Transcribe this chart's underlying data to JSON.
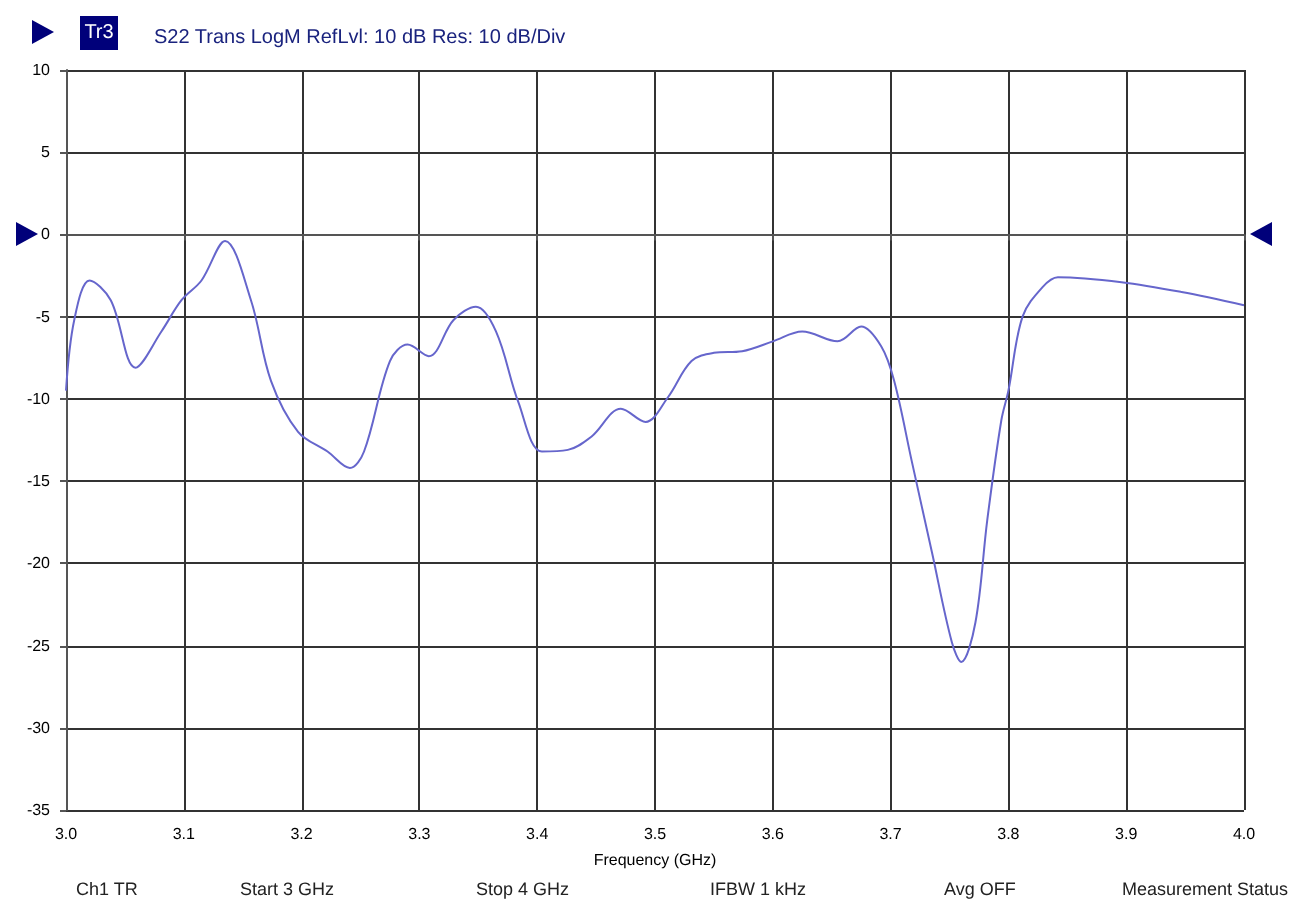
{
  "chart_data": {
    "type": "line",
    "title": "S22 Trans LogM RefLvl: 10 dB Res: 10 dB/Div",
    "xlabel": "Frequency (GHz)",
    "annotations": [
      "Tr3",
      "Ch1 TR",
      "Start 3 GHz",
      "Stop 4 GHz",
      "IFBW 1 kHz",
      "Avg OFF",
      "Measurement Status"
    ],
    "xlim": [
      3.0,
      4.0
    ],
    "ylim": [
      -35,
      10
    ],
    "xticks": [
      {
        "value": 3.0,
        "label": "3.0"
      },
      3.1,
      3.2,
      3.3,
      3.4,
      3.5,
      3.6,
      3.7,
      3.8,
      3.9,
      {
        "value": 4.0,
        "label": "4.0"
      }
    ],
    "yticks": [
      -35,
      -30,
      -25,
      -20,
      -15,
      -10,
      -5,
      0,
      5,
      10
    ],
    "grid": true,
    "marker": "none",
    "line_style": "solid",
    "series": [
      {
        "color": "#6666cc",
        "x": [
          3.0,
          3.007,
          3.02,
          3.038,
          3.059,
          3.081,
          3.098,
          3.115,
          3.135,
          3.157,
          3.174,
          3.197,
          3.222,
          3.241,
          3.253,
          3.275,
          3.29,
          3.308,
          3.329,
          3.348,
          3.365,
          3.384,
          3.404,
          3.426,
          3.446,
          3.471,
          3.492,
          3.511,
          3.531,
          3.55,
          3.574,
          3.6,
          3.625,
          3.655,
          3.675,
          3.692,
          3.703,
          3.718,
          3.735,
          3.752,
          3.76,
          3.772,
          3.782,
          3.794,
          3.8,
          3.812,
          3.829,
          3.842,
          3.896,
          3.947,
          4.0
        ],
        "values": [
          -9.5,
          -5.2,
          -2.8,
          -4,
          -8.1,
          -5.9,
          -4,
          -2.8,
          -0.4,
          -4,
          -8.9,
          -12,
          -13.2,
          -14.2,
          -13.2,
          -7.7,
          -6.7,
          -7.4,
          -5.2,
          -4.4,
          -5.9,
          -10.2,
          -13.2,
          -13.1,
          -12.3,
          -10.6,
          -11.4,
          -9.9,
          -7.7,
          -7.2,
          -7.1,
          -6.5,
          -5.9,
          -6.5,
          -5.6,
          -6.8,
          -8.9,
          -13.8,
          -19.3,
          -24.8,
          -26,
          -23.6,
          -17.4,
          -11.3,
          -9.5,
          -5,
          -3.2,
          -2.6,
          -2.9,
          -3.5,
          -4.3
        ]
      }
    ]
  }
}
